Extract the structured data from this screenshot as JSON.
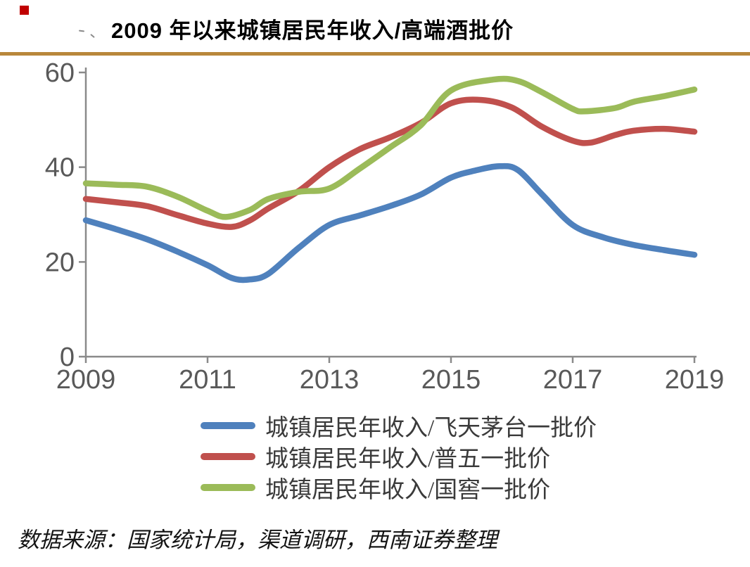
{
  "title": "2009 年以来城镇居民年收入/高端酒批价",
  "source": "数据来源：国家统计局，渠道调研，西南证券整理",
  "colors": {
    "accent_bar": "#B8873B",
    "title_bullet": "#C00000",
    "axis": "#8A8A8A",
    "tick_label": "#595959",
    "background": "#FFFFFF"
  },
  "chart_data": {
    "type": "line",
    "title": "2009 年以来城镇居民年收入/高端酒批价",
    "xlabel": "",
    "ylabel": "",
    "xlim": [
      2009,
      2019
    ],
    "ylim": [
      0,
      60
    ],
    "x_ticks": [
      2009,
      2011,
      2013,
      2015,
      2017,
      2019
    ],
    "y_ticks": [
      0,
      20,
      40,
      60
    ],
    "grid": false,
    "legend_position": "bottom-left",
    "series": [
      {
        "name": "城镇居民年收入/飞天茅台一批价",
        "color": "#4F81BD",
        "points": [
          [
            2009,
            28.8
          ],
          [
            2009.5,
            26.9
          ],
          [
            2010,
            24.8
          ],
          [
            2010.5,
            22.2
          ],
          [
            2011,
            19.3
          ],
          [
            2011.4,
            16.6
          ],
          [
            2011.7,
            16.3
          ],
          [
            2012,
            17.5
          ],
          [
            2012.5,
            23.0
          ],
          [
            2013,
            27.8
          ],
          [
            2013.5,
            29.8
          ],
          [
            2014,
            31.8
          ],
          [
            2014.5,
            34.2
          ],
          [
            2015,
            37.8
          ],
          [
            2015.4,
            39.3
          ],
          [
            2015.8,
            40.2
          ],
          [
            2016.1,
            39.4
          ],
          [
            2016.5,
            34.2
          ],
          [
            2017,
            27.8
          ],
          [
            2017.5,
            25.2
          ],
          [
            2018,
            23.6
          ],
          [
            2018.5,
            22.5
          ],
          [
            2019,
            21.5
          ]
        ]
      },
      {
        "name": "城镇居民年收入/普五一批价",
        "color": "#C0504D",
        "points": [
          [
            2009,
            33.3
          ],
          [
            2009.5,
            32.6
          ],
          [
            2010,
            31.8
          ],
          [
            2010.5,
            29.9
          ],
          [
            2011,
            28.1
          ],
          [
            2011.4,
            27.4
          ],
          [
            2011.7,
            28.8
          ],
          [
            2012,
            31.3
          ],
          [
            2012.5,
            35.0
          ],
          [
            2013,
            40.0
          ],
          [
            2013.5,
            43.8
          ],
          [
            2014,
            46.3
          ],
          [
            2014.5,
            49.3
          ],
          [
            2015,
            53.5
          ],
          [
            2015.5,
            54.2
          ],
          [
            2016,
            52.6
          ],
          [
            2016.5,
            48.5
          ],
          [
            2017,
            45.6
          ],
          [
            2017.3,
            45.2
          ],
          [
            2017.7,
            46.8
          ],
          [
            2018,
            47.7
          ],
          [
            2018.5,
            48.1
          ],
          [
            2019,
            47.5
          ]
        ]
      },
      {
        "name": "城镇居民年收入/国窖一批价",
        "color": "#9BBB59",
        "points": [
          [
            2009,
            36.6
          ],
          [
            2009.5,
            36.3
          ],
          [
            2010,
            35.9
          ],
          [
            2010.5,
            33.8
          ],
          [
            2011,
            30.8
          ],
          [
            2011.3,
            29.5
          ],
          [
            2011.7,
            31.0
          ],
          [
            2012,
            33.3
          ],
          [
            2012.5,
            34.8
          ],
          [
            2013,
            35.5
          ],
          [
            2013.5,
            39.7
          ],
          [
            2014,
            44.2
          ],
          [
            2014.5,
            48.8
          ],
          [
            2015,
            56.2
          ],
          [
            2015.7,
            58.5
          ],
          [
            2016.1,
            58.2
          ],
          [
            2016.5,
            55.8
          ],
          [
            2017,
            52.3
          ],
          [
            2017.2,
            51.8
          ],
          [
            2017.7,
            52.5
          ],
          [
            2018,
            53.8
          ],
          [
            2018.5,
            55.0
          ],
          [
            2019,
            56.4
          ]
        ]
      }
    ]
  }
}
